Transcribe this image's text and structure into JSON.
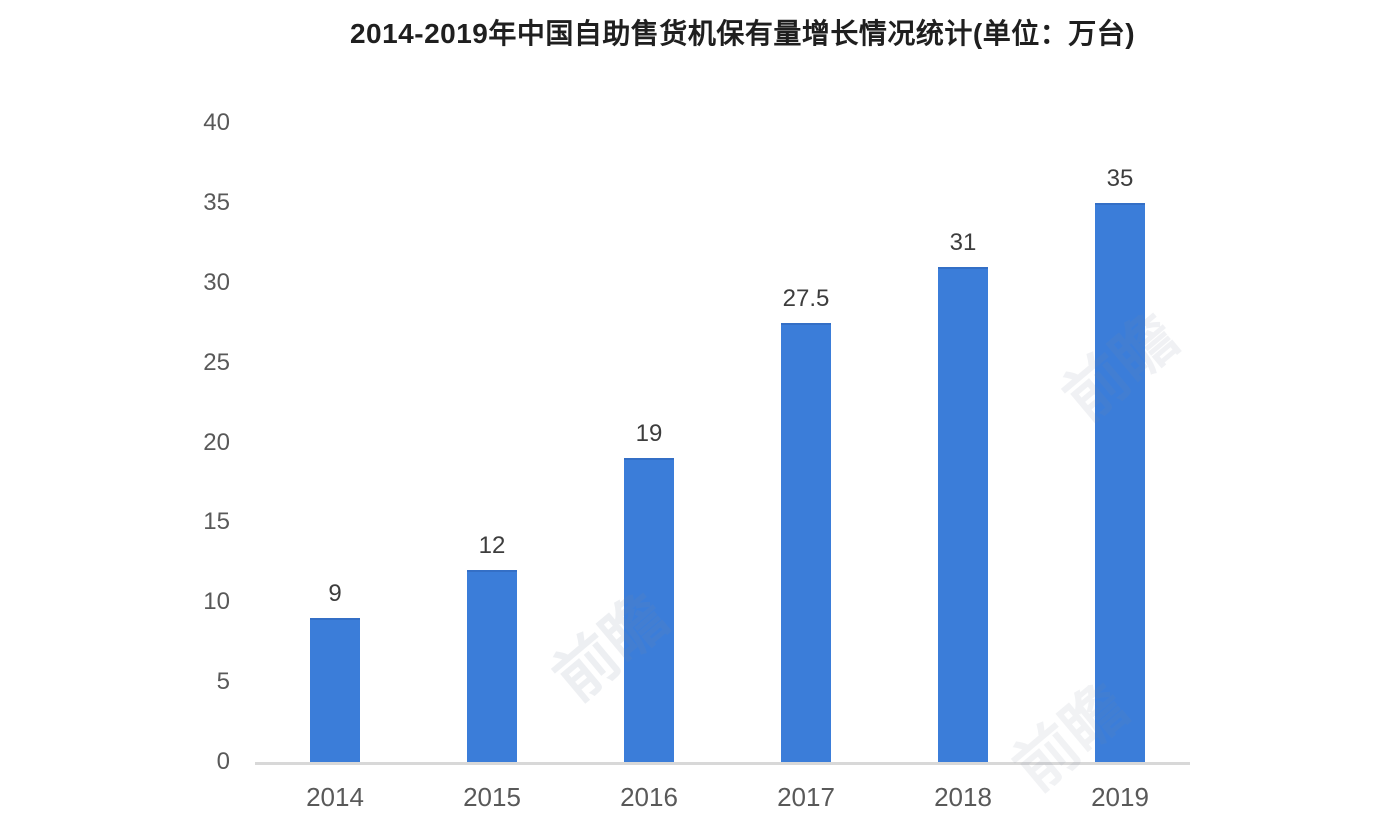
{
  "page": {
    "background": "#ffffff"
  },
  "chart_data": {
    "type": "bar",
    "title": "2014-2019年中国自助售货机保有量增长情况统计(单位：万台)",
    "categories": [
      "2014",
      "2015",
      "2016",
      "2017",
      "2018",
      "2019"
    ],
    "values": [
      9,
      12,
      19,
      27.5,
      31,
      35
    ],
    "value_labels": [
      "9",
      "12",
      "19",
      "27.5",
      "31",
      "35"
    ],
    "xlabel": "",
    "ylabel": "",
    "ylim": [
      0,
      40
    ],
    "yticks": [
      0,
      5,
      10,
      15,
      20,
      25,
      30,
      35,
      40
    ],
    "grid": false,
    "legend": "none",
    "colors": {
      "bar": "#3b7dd9",
      "bar_edge": "#346fc6",
      "axis_line": "#d8d8d8",
      "tick_label": "#595959",
      "value_label": "#3d3d3d",
      "title": "#1f1f1f",
      "watermark": "#7d8aa0",
      "background": "#ffffff"
    }
  },
  "watermark": {
    "text": "前瞻"
  }
}
